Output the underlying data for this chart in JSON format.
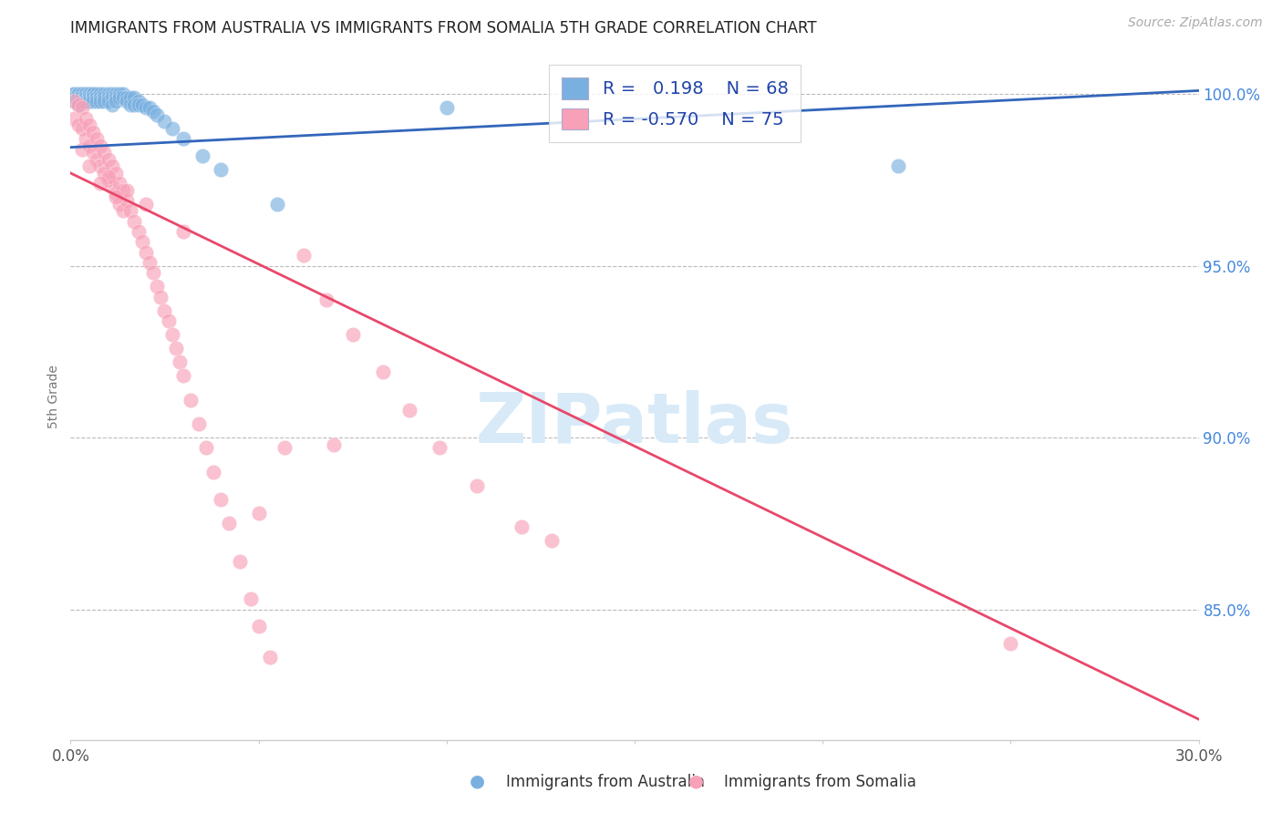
{
  "title": "IMMIGRANTS FROM AUSTRALIA VS IMMIGRANTS FROM SOMALIA 5TH GRADE CORRELATION CHART",
  "source": "Source: ZipAtlas.com",
  "ylabel": "5th Grade",
  "yaxis_ticks": [
    "100.0%",
    "95.0%",
    "90.0%",
    "85.0%"
  ],
  "yaxis_tick_values": [
    1.0,
    0.95,
    0.9,
    0.85
  ],
  "xmin": 0.0,
  "xmax": 0.3,
  "ymin": 0.812,
  "ymax": 1.012,
  "australia_R": 0.198,
  "australia_N": 68,
  "somalia_R": -0.57,
  "somalia_N": 75,
  "australia_color": "#7ab0e0",
  "somalia_color": "#f8a0b8",
  "australia_line_color": "#3366bb",
  "somalia_line_color": "#e8486a",
  "title_color": "#222222",
  "source_color": "#aaaaaa",
  "yaxis_label_color": "#4488dd",
  "legend_text_color": "#2244aa",
  "background_color": "#ffffff",
  "watermark_color": "#d8eaf8",
  "aus_line_x0": 0.0,
  "aus_line_y0": 0.9845,
  "aus_line_x1": 0.3,
  "aus_line_y1": 1.001,
  "som_line_x0": 0.0,
  "som_line_y0": 0.977,
  "som_line_x1": 0.3,
  "som_line_y1": 0.818,
  "australia_x": [
    0.001,
    0.001,
    0.001,
    0.001,
    0.002,
    0.002,
    0.002,
    0.002,
    0.002,
    0.003,
    0.003,
    0.003,
    0.003,
    0.004,
    0.004,
    0.004,
    0.004,
    0.005,
    0.005,
    0.005,
    0.005,
    0.006,
    0.006,
    0.006,
    0.006,
    0.007,
    0.007,
    0.007,
    0.008,
    0.008,
    0.008,
    0.009,
    0.009,
    0.009,
    0.01,
    0.01,
    0.01,
    0.011,
    0.011,
    0.011,
    0.012,
    0.012,
    0.012,
    0.013,
    0.013,
    0.014,
    0.014,
    0.015,
    0.015,
    0.016,
    0.016,
    0.017,
    0.017,
    0.018,
    0.018,
    0.019,
    0.02,
    0.021,
    0.022,
    0.023,
    0.025,
    0.027,
    0.03,
    0.035,
    0.04,
    0.055,
    0.1,
    0.22
  ],
  "australia_y": [
    1.0,
    1.0,
    0.999,
    0.998,
    1.0,
    1.0,
    0.999,
    0.998,
    0.997,
    1.0,
    1.0,
    0.999,
    0.998,
    1.0,
    1.0,
    0.999,
    0.998,
    1.0,
    1.0,
    0.999,
    0.998,
    1.0,
    1.0,
    0.999,
    0.998,
    1.0,
    0.999,
    0.998,
    1.0,
    0.999,
    0.998,
    1.0,
    0.999,
    0.998,
    1.0,
    0.999,
    0.998,
    1.0,
    0.999,
    0.997,
    1.0,
    0.999,
    0.998,
    1.0,
    0.999,
    1.0,
    0.999,
    0.999,
    0.998,
    0.999,
    0.997,
    0.999,
    0.997,
    0.998,
    0.997,
    0.997,
    0.996,
    0.996,
    0.995,
    0.994,
    0.992,
    0.99,
    0.987,
    0.982,
    0.978,
    0.968,
    0.996,
    0.979
  ],
  "somalia_x": [
    0.001,
    0.001,
    0.002,
    0.002,
    0.003,
    0.003,
    0.003,
    0.004,
    0.004,
    0.005,
    0.005,
    0.006,
    0.006,
    0.007,
    0.007,
    0.008,
    0.008,
    0.009,
    0.009,
    0.01,
    0.01,
    0.011,
    0.011,
    0.012,
    0.012,
    0.013,
    0.013,
    0.014,
    0.014,
    0.015,
    0.016,
    0.017,
    0.018,
    0.019,
    0.02,
    0.021,
    0.022,
    0.023,
    0.024,
    0.025,
    0.026,
    0.027,
    0.028,
    0.029,
    0.03,
    0.032,
    0.034,
    0.036,
    0.038,
    0.04,
    0.042,
    0.045,
    0.048,
    0.05,
    0.053,
    0.057,
    0.062,
    0.068,
    0.075,
    0.083,
    0.09,
    0.098,
    0.108,
    0.12,
    0.05,
    0.07,
    0.03,
    0.02,
    0.015,
    0.01,
    0.005,
    0.008,
    0.012,
    0.25,
    0.128
  ],
  "somalia_y": [
    0.998,
    0.993,
    0.997,
    0.991,
    0.996,
    0.99,
    0.984,
    0.993,
    0.987,
    0.991,
    0.985,
    0.989,
    0.983,
    0.987,
    0.981,
    0.985,
    0.979,
    0.983,
    0.977,
    0.981,
    0.975,
    0.979,
    0.973,
    0.977,
    0.971,
    0.974,
    0.968,
    0.972,
    0.966,
    0.969,
    0.966,
    0.963,
    0.96,
    0.957,
    0.954,
    0.951,
    0.948,
    0.944,
    0.941,
    0.937,
    0.934,
    0.93,
    0.926,
    0.922,
    0.918,
    0.911,
    0.904,
    0.897,
    0.89,
    0.882,
    0.875,
    0.864,
    0.853,
    0.845,
    0.836,
    0.897,
    0.953,
    0.94,
    0.93,
    0.919,
    0.908,
    0.897,
    0.886,
    0.874,
    0.878,
    0.898,
    0.96,
    0.968,
    0.972,
    0.976,
    0.979,
    0.974,
    0.97,
    0.84,
    0.87
  ]
}
